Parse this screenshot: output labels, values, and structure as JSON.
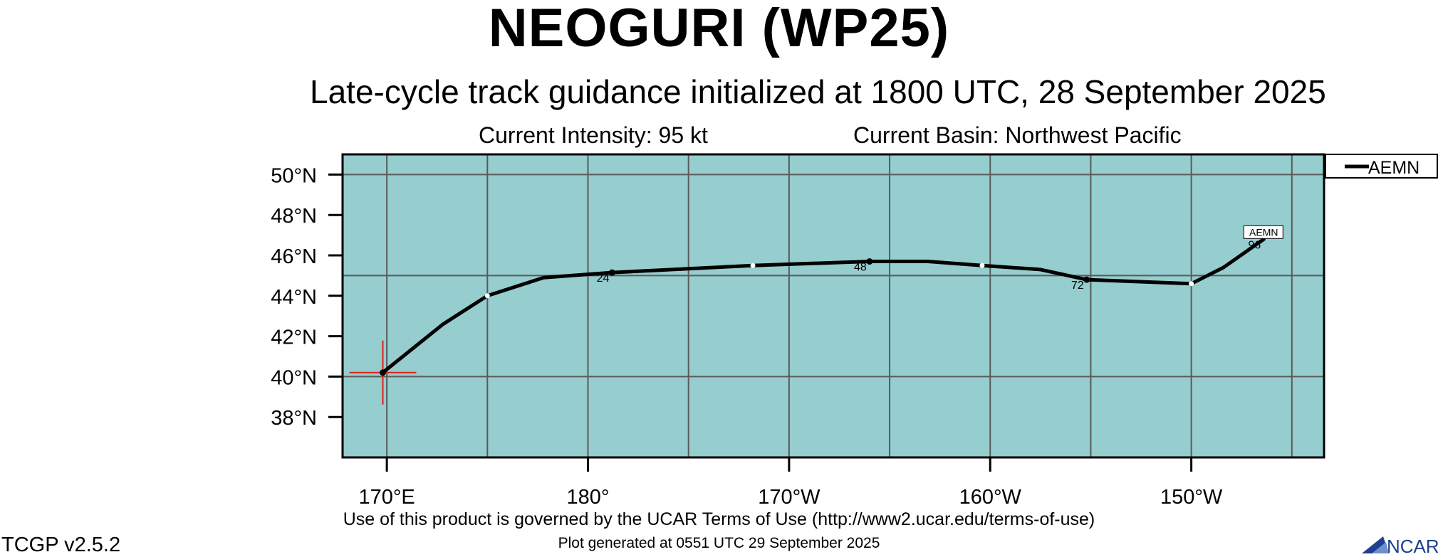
{
  "title": "NEOGURI (WP25)",
  "subtitle": "Late-cycle track guidance initialized at 1800 UTC, 28 September 2025",
  "info": {
    "intensity": "Current Intensity: 95 kt",
    "basin": "Current Basin: Northwest Pacific"
  },
  "footer": {
    "terms": "Use of this product is governed by the UCAR Terms of Use (http://www2.ucar.edu/terms-of-use)",
    "generated": "Plot generated at 0551 UTC   29 September 2025",
    "version": "TCGP v2.5.2",
    "logo_text": "NCAR"
  },
  "colors": {
    "ocean": "#96cdce",
    "grid": "#5a5a5a",
    "track": "#000000",
    "current_position_marker": "#e0201a",
    "logo_blue": "#1f3f8f"
  },
  "chart_data": {
    "type": "line",
    "map": true,
    "x_axis": "longitude (degrees east, 0-360)",
    "y_axis": "latitude (degrees north)",
    "xlim": [
      167.8,
      216.6
    ],
    "ylim": [
      36.0,
      51.0
    ],
    "x_ticks": [
      {
        "value": 170,
        "label": "170°E"
      },
      {
        "value": 180,
        "label": "180°"
      },
      {
        "value": 190,
        "label": "170°W"
      },
      {
        "value": 200,
        "label": "160°W"
      },
      {
        "value": 210,
        "label": "150°W"
      }
    ],
    "y_ticks": [
      {
        "value": 38,
        "label": "38°N"
      },
      {
        "value": 40,
        "label": "40°N"
      },
      {
        "value": 42,
        "label": "42°N"
      },
      {
        "value": 44,
        "label": "44°N"
      },
      {
        "value": 46,
        "label": "46°N"
      },
      {
        "value": 48,
        "label": "48°N"
      },
      {
        "value": 50,
        "label": "50°N"
      }
    ],
    "grid_lon": [
      170,
      175,
      180,
      185,
      190,
      195,
      200,
      205,
      210,
      215
    ],
    "grid_lat": [
      40,
      45,
      50
    ],
    "grid": true,
    "legend": {
      "position": "right",
      "entries": [
        "AEMN"
      ]
    },
    "current_position": {
      "lon": 169.8,
      "lat": 40.2
    },
    "series": [
      {
        "name": "AEMN",
        "points": [
          {
            "lon": 169.8,
            "lat": 40.2,
            "marker": "black"
          },
          {
            "lon": 172.8,
            "lat": 42.6
          },
          {
            "lon": 175.0,
            "lat": 44.0,
            "marker": "white"
          },
          {
            "lon": 177.8,
            "lat": 44.9
          },
          {
            "lon": 181.2,
            "lat": 45.15,
            "marker": "black",
            "label": "24"
          },
          {
            "lon": 188.2,
            "lat": 45.5,
            "marker": "white"
          },
          {
            "lon": 194.0,
            "lat": 45.7,
            "marker": "black",
            "label": "48"
          },
          {
            "lon": 196.9,
            "lat": 45.7
          },
          {
            "lon": 199.6,
            "lat": 45.5,
            "marker": "white"
          },
          {
            "lon": 202.5,
            "lat": 45.3
          },
          {
            "lon": 204.8,
            "lat": 44.8,
            "marker": "black",
            "label": "72"
          },
          {
            "lon": 210.0,
            "lat": 44.6,
            "marker": "white"
          },
          {
            "lon": 211.6,
            "lat": 45.4
          },
          {
            "lon": 213.6,
            "lat": 46.8,
            "label": "96"
          }
        ],
        "end_label": "AEMN"
      }
    ]
  }
}
